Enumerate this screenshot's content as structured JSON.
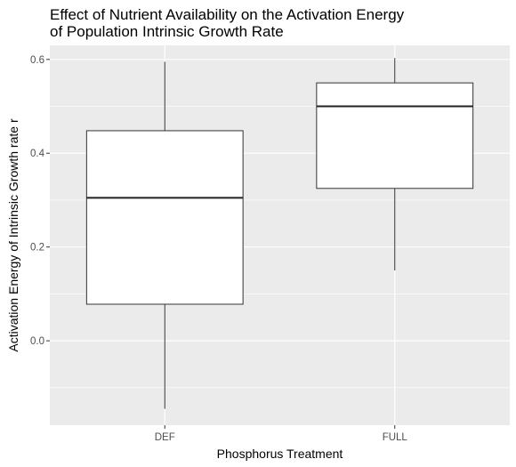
{
  "chart_data": {
    "type": "boxplot",
    "title_lines": [
      "Effect of Nutrient Availability on the Activation Energy",
      "of Population Intrinsic Growth Rate"
    ],
    "xlabel": "Phosphorus Treatment",
    "ylabel": "Activation Energy of Intrinsic Growth rate r",
    "ylim": [
      -0.18,
      0.63
    ],
    "yticks": [
      0.0,
      0.2,
      0.4,
      0.6
    ],
    "ytick_labels": [
      "0.0",
      "0.2",
      "0.4",
      "0.6"
    ],
    "categories": [
      "DEF",
      "FULL"
    ],
    "boxes": [
      {
        "category": "DEF",
        "min": -0.145,
        "q1": 0.078,
        "median": 0.305,
        "q3": 0.448,
        "max": 0.595
      },
      {
        "category": "FULL",
        "min": 0.15,
        "q1": 0.325,
        "median": 0.5,
        "q3": 0.55,
        "max": 0.603
      }
    ],
    "grid": true,
    "panel_background": "#ebebeb",
    "grid_color": "#ffffff",
    "box_fill": "#ffffff",
    "box_stroke": "#333333"
  }
}
